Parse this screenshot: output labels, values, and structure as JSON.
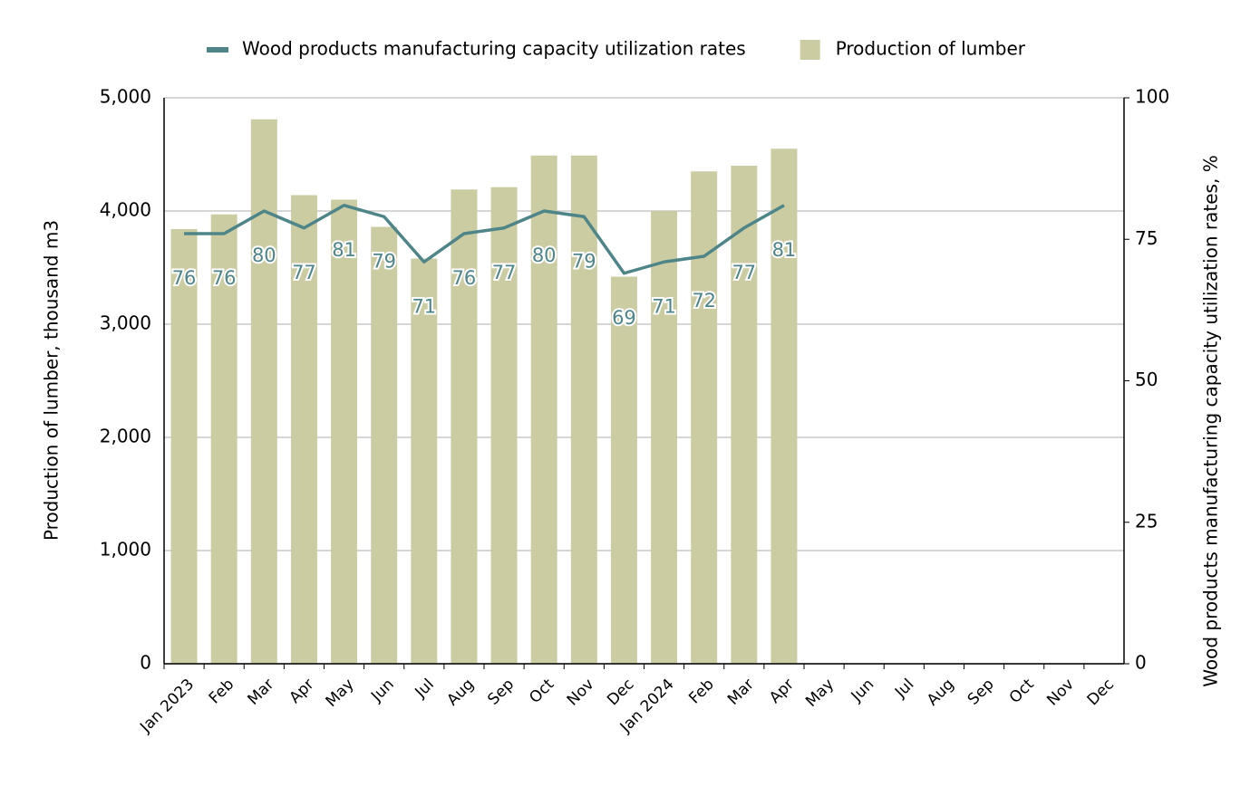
{
  "chart_data": {
    "type": "bar+line",
    "categories": [
      "Jan 2023",
      "Feb",
      "Mar",
      "Apr",
      "May",
      "Jun",
      "Jul",
      "Aug",
      "Sep",
      "Oct",
      "Nov",
      "Dec",
      "Jan 2024",
      "Feb",
      "Mar",
      "Apr",
      "May",
      "Jun",
      "Jul",
      "Aug",
      "Sep",
      "Oct",
      "Nov",
      "Dec"
    ],
    "series": [
      {
        "name": "Wood products manufacturing capacity utilization rates",
        "type": "line",
        "axis": "y2",
        "color": "#4e8588",
        "values": [
          76,
          76,
          80,
          77,
          81,
          79,
          71,
          76,
          77,
          80,
          79,
          69,
          71,
          72,
          77,
          81,
          null,
          null,
          null,
          null,
          null,
          null,
          null,
          null
        ]
      },
      {
        "name": "Production of lumber",
        "type": "bar",
        "axis": "y",
        "color": "#cccca3",
        "values": [
          3840,
          3970,
          4810,
          4140,
          4100,
          3860,
          3580,
          4190,
          4210,
          4490,
          4490,
          3420,
          4000,
          4350,
          4400,
          4550,
          null,
          null,
          null,
          null,
          null,
          null,
          null,
          null
        ]
      }
    ],
    "ylabel": "Production of lumber, thousand m3",
    "y2label": "Wood products manufacturing capacity utilization rates, %",
    "ylim": [
      0,
      5000
    ],
    "yticks": [
      0,
      {
        "value": 1000,
        "label": "1,000"
      },
      {
        "value": 2000,
        "label": "2,000"
      },
      {
        "value": 3000,
        "label": "3,000"
      },
      {
        "value": 4000,
        "label": "4,000"
      },
      {
        "value": 5000,
        "label": "5,000"
      }
    ],
    "y2lim": [
      0,
      100
    ],
    "y2ticks": [
      0,
      25,
      50,
      75,
      100
    ],
    "grid": true,
    "legend": "top"
  }
}
